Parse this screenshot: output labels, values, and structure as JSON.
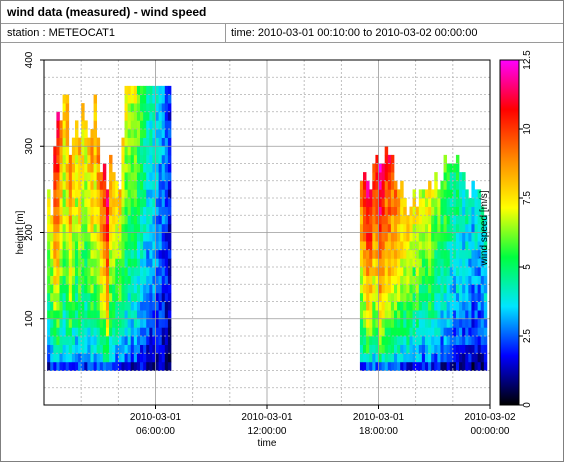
{
  "header": {
    "title": "wind data (measured) - wind speed",
    "station": "station : METEOCAT1",
    "time_range": "time: 2010-03-01 00:10:00 to 2010-03-02 00:00:00"
  },
  "chart_data": {
    "type": "heatmap",
    "title": "wind data (measured) - wind speed",
    "xlabel": "time",
    "ylabel": "height [m]",
    "colorbar_label": "wind speed [m/s]",
    "x_unit": "hours since 2010-03-01 00:00",
    "xlim": [
      0,
      24
    ],
    "ylim": [
      0,
      400
    ],
    "x_ticks": [
      {
        "value": 6,
        "line1": "2010-03-01",
        "line2": "06:00:00"
      },
      {
        "value": 12,
        "line1": "2010-03-01",
        "line2": "12:00:00"
      },
      {
        "value": 18,
        "line1": "2010-03-01",
        "line2": "18:00:00"
      },
      {
        "value": 24,
        "line1": "2010-03-02",
        "line2": "00:00:00"
      }
    ],
    "y_ticks": [
      {
        "value": 100,
        "label": "100"
      },
      {
        "value": 200,
        "label": "200"
      },
      {
        "value": 300,
        "label": "300"
      },
      {
        "value": 400,
        "label": "400"
      }
    ],
    "colorbar": {
      "min": 0,
      "max": 12.5,
      "ticks": [
        {
          "value": 0,
          "label": "0"
        },
        {
          "value": 2.5,
          "label": "2.5"
        },
        {
          "value": 5,
          "label": "5"
        },
        {
          "value": 7.5,
          "label": "7.5"
        },
        {
          "value": 10,
          "label": "10"
        },
        {
          "value": 12.5,
          "label": "12.5"
        }
      ],
      "stops": [
        "#000000",
        "#0000ff",
        "#00e5ff",
        "#00ff40",
        "#ffff00",
        "#ff8800",
        "#ff0000",
        "#ff00ff"
      ]
    },
    "grid": true,
    "height_levels": {
      "start": 40,
      "step": 10,
      "count": 33
    },
    "time_step_hours": 0.1667,
    "segments": [
      {
        "t_start": 0.1667,
        "count": 40,
        "tops": [
          240,
          215,
          290,
          330,
          320,
          355,
          350,
          280,
          300,
          320,
          300,
          345,
          325,
          300,
          310,
          350,
          300,
          265,
          270,
          240,
          280,
          260,
          255,
          245,
          300,
          365,
          365,
          365,
          365,
          365,
          365,
          365,
          365,
          365,
          365,
          365,
          365,
          365,
          365,
          365
        ],
        "center": [
          5.3,
          5.8,
          7.8,
          8.2,
          6.8,
          6.0,
          6.6,
          7.4,
          6.3,
          5.8,
          6.6,
          6.0,
          5.6,
          6.0,
          6.7,
          6.3,
          6.8,
          7.4,
          8.0,
          8.8,
          6.6,
          6.0,
          5.8,
          6.0,
          5.6,
          5.4,
          5.2,
          5.0,
          5.2,
          4.6,
          4.3,
          3.9,
          3.4,
          3.3,
          3.3,
          2.9,
          2.7,
          2.4,
          2.1,
          1.6
        ]
      },
      {
        "t_start": 17.0,
        "count": 41,
        "tops": [
          255,
          265,
          250,
          240,
          275,
          280,
          270,
          275,
          290,
          280,
          285,
          255,
          245,
          250,
          230,
          215,
          220,
          240,
          225,
          245,
          240,
          245,
          255,
          240,
          260,
          240,
          255,
          285,
          270,
          275,
          275,
          280,
          265,
          260,
          245,
          235,
          250,
          245,
          240,
          225,
          210
        ],
        "center": [
          7.0,
          7.8,
          8.6,
          8.3,
          7.6,
          8.2,
          9.1,
          8.6,
          7.8,
          8.1,
          7.5,
          7.2,
          6.8,
          6.4,
          6.0,
          6.1,
          5.7,
          5.6,
          5.8,
          5.4,
          5.1,
          5.5,
          5.9,
          5.2,
          4.9,
          4.6,
          4.2,
          4.6,
          4.2,
          3.8,
          3.6,
          3.9,
          3.4,
          3.2,
          3.4,
          3.1,
          2.8,
          3.1,
          2.9,
          3.2,
          3.4
        ]
      }
    ]
  }
}
